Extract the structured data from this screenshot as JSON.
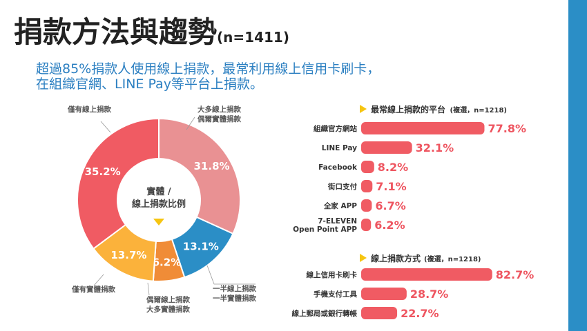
{
  "title": {
    "main": "捐款方法與趨勢",
    "n": "(n=1411)"
  },
  "subtitle": {
    "line1": "超過85%捐款人使用線上捐款，最常利用線上信用卡刷卡，",
    "line2": "在組織官網、LINE Pay等平台上捐款。"
  },
  "colors": {
    "red": "#f05b63",
    "pink": "#e99193",
    "blue": "#2b8ec6",
    "orange": "#f08c37",
    "yellow": "#fbb23b",
    "bar": "#f05b63",
    "accent_arrow": "#f6c511"
  },
  "chart_data": [
    {
      "type": "pie",
      "center_label": [
        "實體 /",
        "線上捐款比例"
      ],
      "slices": [
        {
          "label": "大多線上捐款 偶爾實體捐款",
          "label_lines": [
            "大多線上捐款",
            "偶爾實體捐款"
          ],
          "value": 31.8,
          "display": "31.8%",
          "color": "#e99193"
        },
        {
          "label": "一半線上捐款 一半實體捐款",
          "label_lines": [
            "一半線上捐款",
            "一半實體捐款"
          ],
          "value": 13.1,
          "display": "13.1%",
          "color": "#2b8ec6"
        },
        {
          "label": "偶爾線上捐款 大多實體捐款",
          "label_lines": [
            "偶爾線上捐款",
            "大多實體捐款"
          ],
          "value": 6.2,
          "display": "6.2%",
          "color": "#f08c37"
        },
        {
          "label": "僅有實體捐款",
          "label_lines": [
            "僅有實體捐款"
          ],
          "value": 13.7,
          "display": "13.7%",
          "color": "#fbb23b"
        },
        {
          "label": "僅有線上捐款",
          "label_lines": [
            "僅有線上捐款"
          ],
          "value": 35.2,
          "display": "35.2%",
          "color": "#f05b63"
        }
      ]
    },
    {
      "type": "bar",
      "title": "最常線上捐款的平台",
      "title_note": "(複選，n=1218)",
      "categories": [
        [
          "組織官方網站"
        ],
        [
          "LINE Pay"
        ],
        [
          "Facebook"
        ],
        [
          "街口支付"
        ],
        [
          "全家 APP"
        ],
        [
          "7-ELEVEN",
          "Open Point APP"
        ]
      ],
      "values": [
        77.8,
        32.1,
        8.2,
        7.1,
        6.7,
        6.2
      ],
      "value_labels": [
        "77.8%",
        "32.1%",
        "8.2%",
        "7.1%",
        "6.7%",
        "6.2%"
      ]
    },
    {
      "type": "bar",
      "title": "線上捐款方式",
      "title_note": "(複選，n=1218)",
      "categories": [
        [
          "線上信用卡刷卡"
        ],
        [
          "手機支付工具"
        ],
        [
          "線上郵局或銀行轉帳"
        ]
      ],
      "values": [
        82.7,
        28.7,
        22.7
      ],
      "value_labels": [
        "82.7%",
        "28.7%",
        "22.7%"
      ]
    }
  ]
}
